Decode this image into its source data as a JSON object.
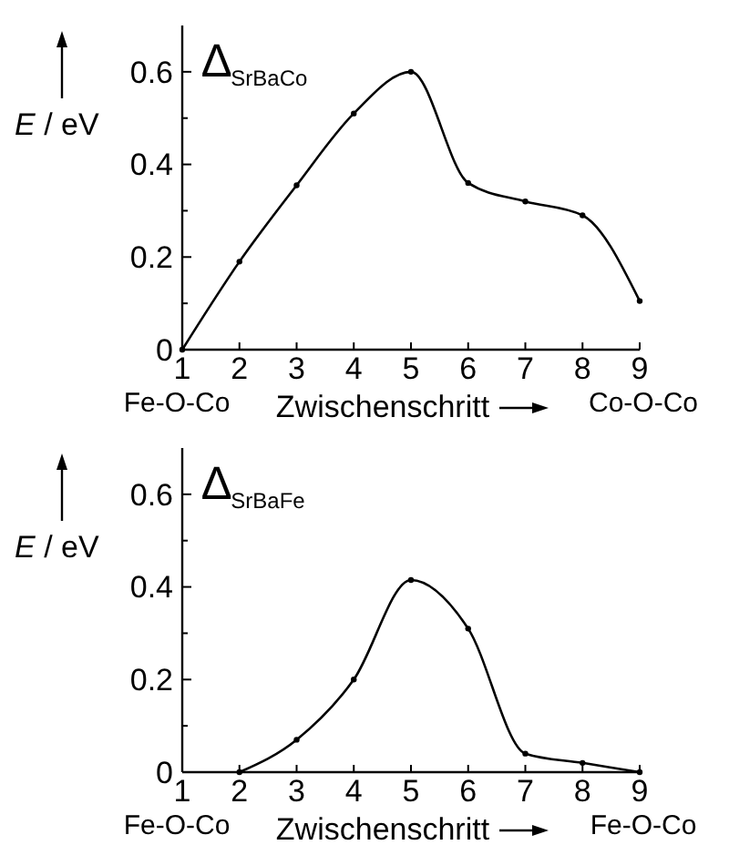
{
  "chart_data": [
    {
      "type": "line",
      "title": "∆$_{SrBaCo}$",
      "xlabel": "Zwischenschritt",
      "ylabel": "E / eV",
      "x": [
        1,
        2,
        3,
        4,
        5,
        6,
        7,
        8,
        9
      ],
      "series": [
        {
          "color": "#000000",
          "values": [
            0,
            0.19,
            0.355,
            0.51,
            0.6,
            0.36,
            0.32,
            0.29,
            0.105
          ]
        }
      ],
      "xlim": [
        1,
        9
      ],
      "xticks": [
        1,
        2,
        3,
        4,
        5,
        6,
        7,
        8,
        9
      ],
      "ylim": [
        0,
        0.7
      ],
      "yticks": [
        0,
        {
          "value": 0.1,
          "label": null
        },
        0.2,
        {
          "value": 0.3,
          "label": null
        },
        0.4,
        {
          "value": 0.5,
          "label": null
        },
        0.6
      ],
      "annotations": [
        "Fe-O-Co",
        "Co-O-Co"
      ],
      "marker": "circle",
      "grid": false
    },
    {
      "type": "line",
      "title": "∆$_{SrBaFe}$",
      "xlabel": "Zwischenschritt",
      "ylabel": "E / eV",
      "series": [
        {
          "color": "#000000",
          "x": [
            2,
            3,
            4,
            5,
            6,
            7,
            8,
            9
          ],
          "values": [
            0,
            0.07,
            0.2,
            0.415,
            0.31,
            0.04,
            0.02,
            0
          ]
        }
      ],
      "xlim": [
        1,
        9
      ],
      "xticks": [
        1,
        2,
        3,
        4,
        5,
        6,
        7,
        8,
        9
      ],
      "ylim": [
        0,
        0.7
      ],
      "yticks": [
        0,
        {
          "value": 0.1,
          "label": null
        },
        0.2,
        {
          "value": 0.3,
          "label": null
        },
        0.4,
        {
          "value": 0.5,
          "label": null
        },
        0.6
      ],
      "annotations": [
        "Fe-O-Co",
        "Fe-O-Co"
      ],
      "marker": "circle",
      "grid": false
    }
  ]
}
